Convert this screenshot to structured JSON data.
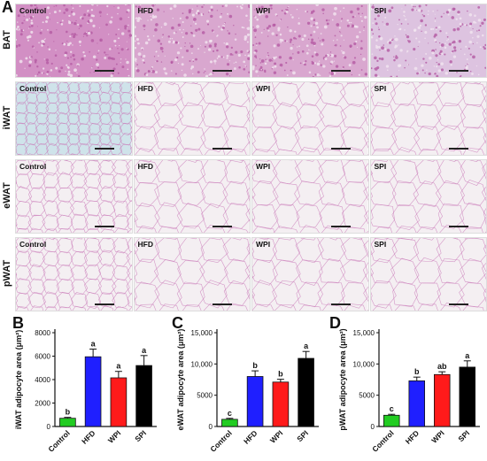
{
  "figure": {
    "panel_A_label": "A",
    "row_labels": [
      "BAT",
      "iWAT",
      "eWAT",
      "pWAT"
    ],
    "group_labels": [
      "Control",
      "HFD",
      "WPI",
      "SPI"
    ],
    "tissue_colors": {
      "BAT": "#d9a7cf",
      "iWAT_control": "#cfe3ea",
      "white": "#f4eff2",
      "membrane": "#c97ab8"
    }
  },
  "chart_data": [
    {
      "panel": "B",
      "type": "bar",
      "ylabel": "iWAT adipocyte area (μm²)",
      "categories": [
        "Control",
        "HFD",
        "WPI",
        "SPI"
      ],
      "values": [
        700,
        5950,
        4150,
        5200
      ],
      "errors": [
        80,
        650,
        550,
        850
      ],
      "letters": [
        "b",
        "a",
        "a",
        "a"
      ],
      "colors": [
        "#22cc22",
        "#1f1fff",
        "#ff1a1a",
        "#000000"
      ],
      "ylim": [
        0,
        8000
      ],
      "yticks": [
        "0",
        "2000",
        "4000",
        "6000",
        "8000"
      ],
      "ytick_values": [
        0,
        2000,
        4000,
        6000,
        8000
      ]
    },
    {
      "panel": "C",
      "type": "bar",
      "ylabel": "eWAT adipocyte area (μm²)",
      "categories": [
        "Control",
        "HFD",
        "WPI",
        "SPI"
      ],
      "values": [
        1150,
        8000,
        7100,
        10900
      ],
      "errors": [
        150,
        900,
        450,
        1100
      ],
      "letters": [
        "c",
        "b",
        "b",
        "a"
      ],
      "colors": [
        "#22cc22",
        "#1f1fff",
        "#ff1a1a",
        "#000000"
      ],
      "ylim": [
        0,
        15000
      ],
      "yticks": [
        "0",
        "5000",
        "10,000",
        "15,000"
      ],
      "ytick_values": [
        0,
        5000,
        10000,
        15000
      ]
    },
    {
      "panel": "D",
      "type": "bar",
      "ylabel": "pWAT adipocyte area (μm²)",
      "categories": [
        "Control",
        "HFD",
        "WPI",
        "SPI"
      ],
      "values": [
        1800,
        7300,
        8300,
        9500
      ],
      "errors": [
        150,
        600,
        450,
        1000
      ],
      "letters": [
        "c",
        "b",
        "ab",
        "a"
      ],
      "colors": [
        "#22cc22",
        "#1f1fff",
        "#ff1a1a",
        "#000000"
      ],
      "ylim": [
        0,
        15000
      ],
      "yticks": [
        "0",
        "5000",
        "10,000",
        "15,000"
      ],
      "ytick_values": [
        0,
        5000,
        10000,
        15000
      ]
    }
  ]
}
